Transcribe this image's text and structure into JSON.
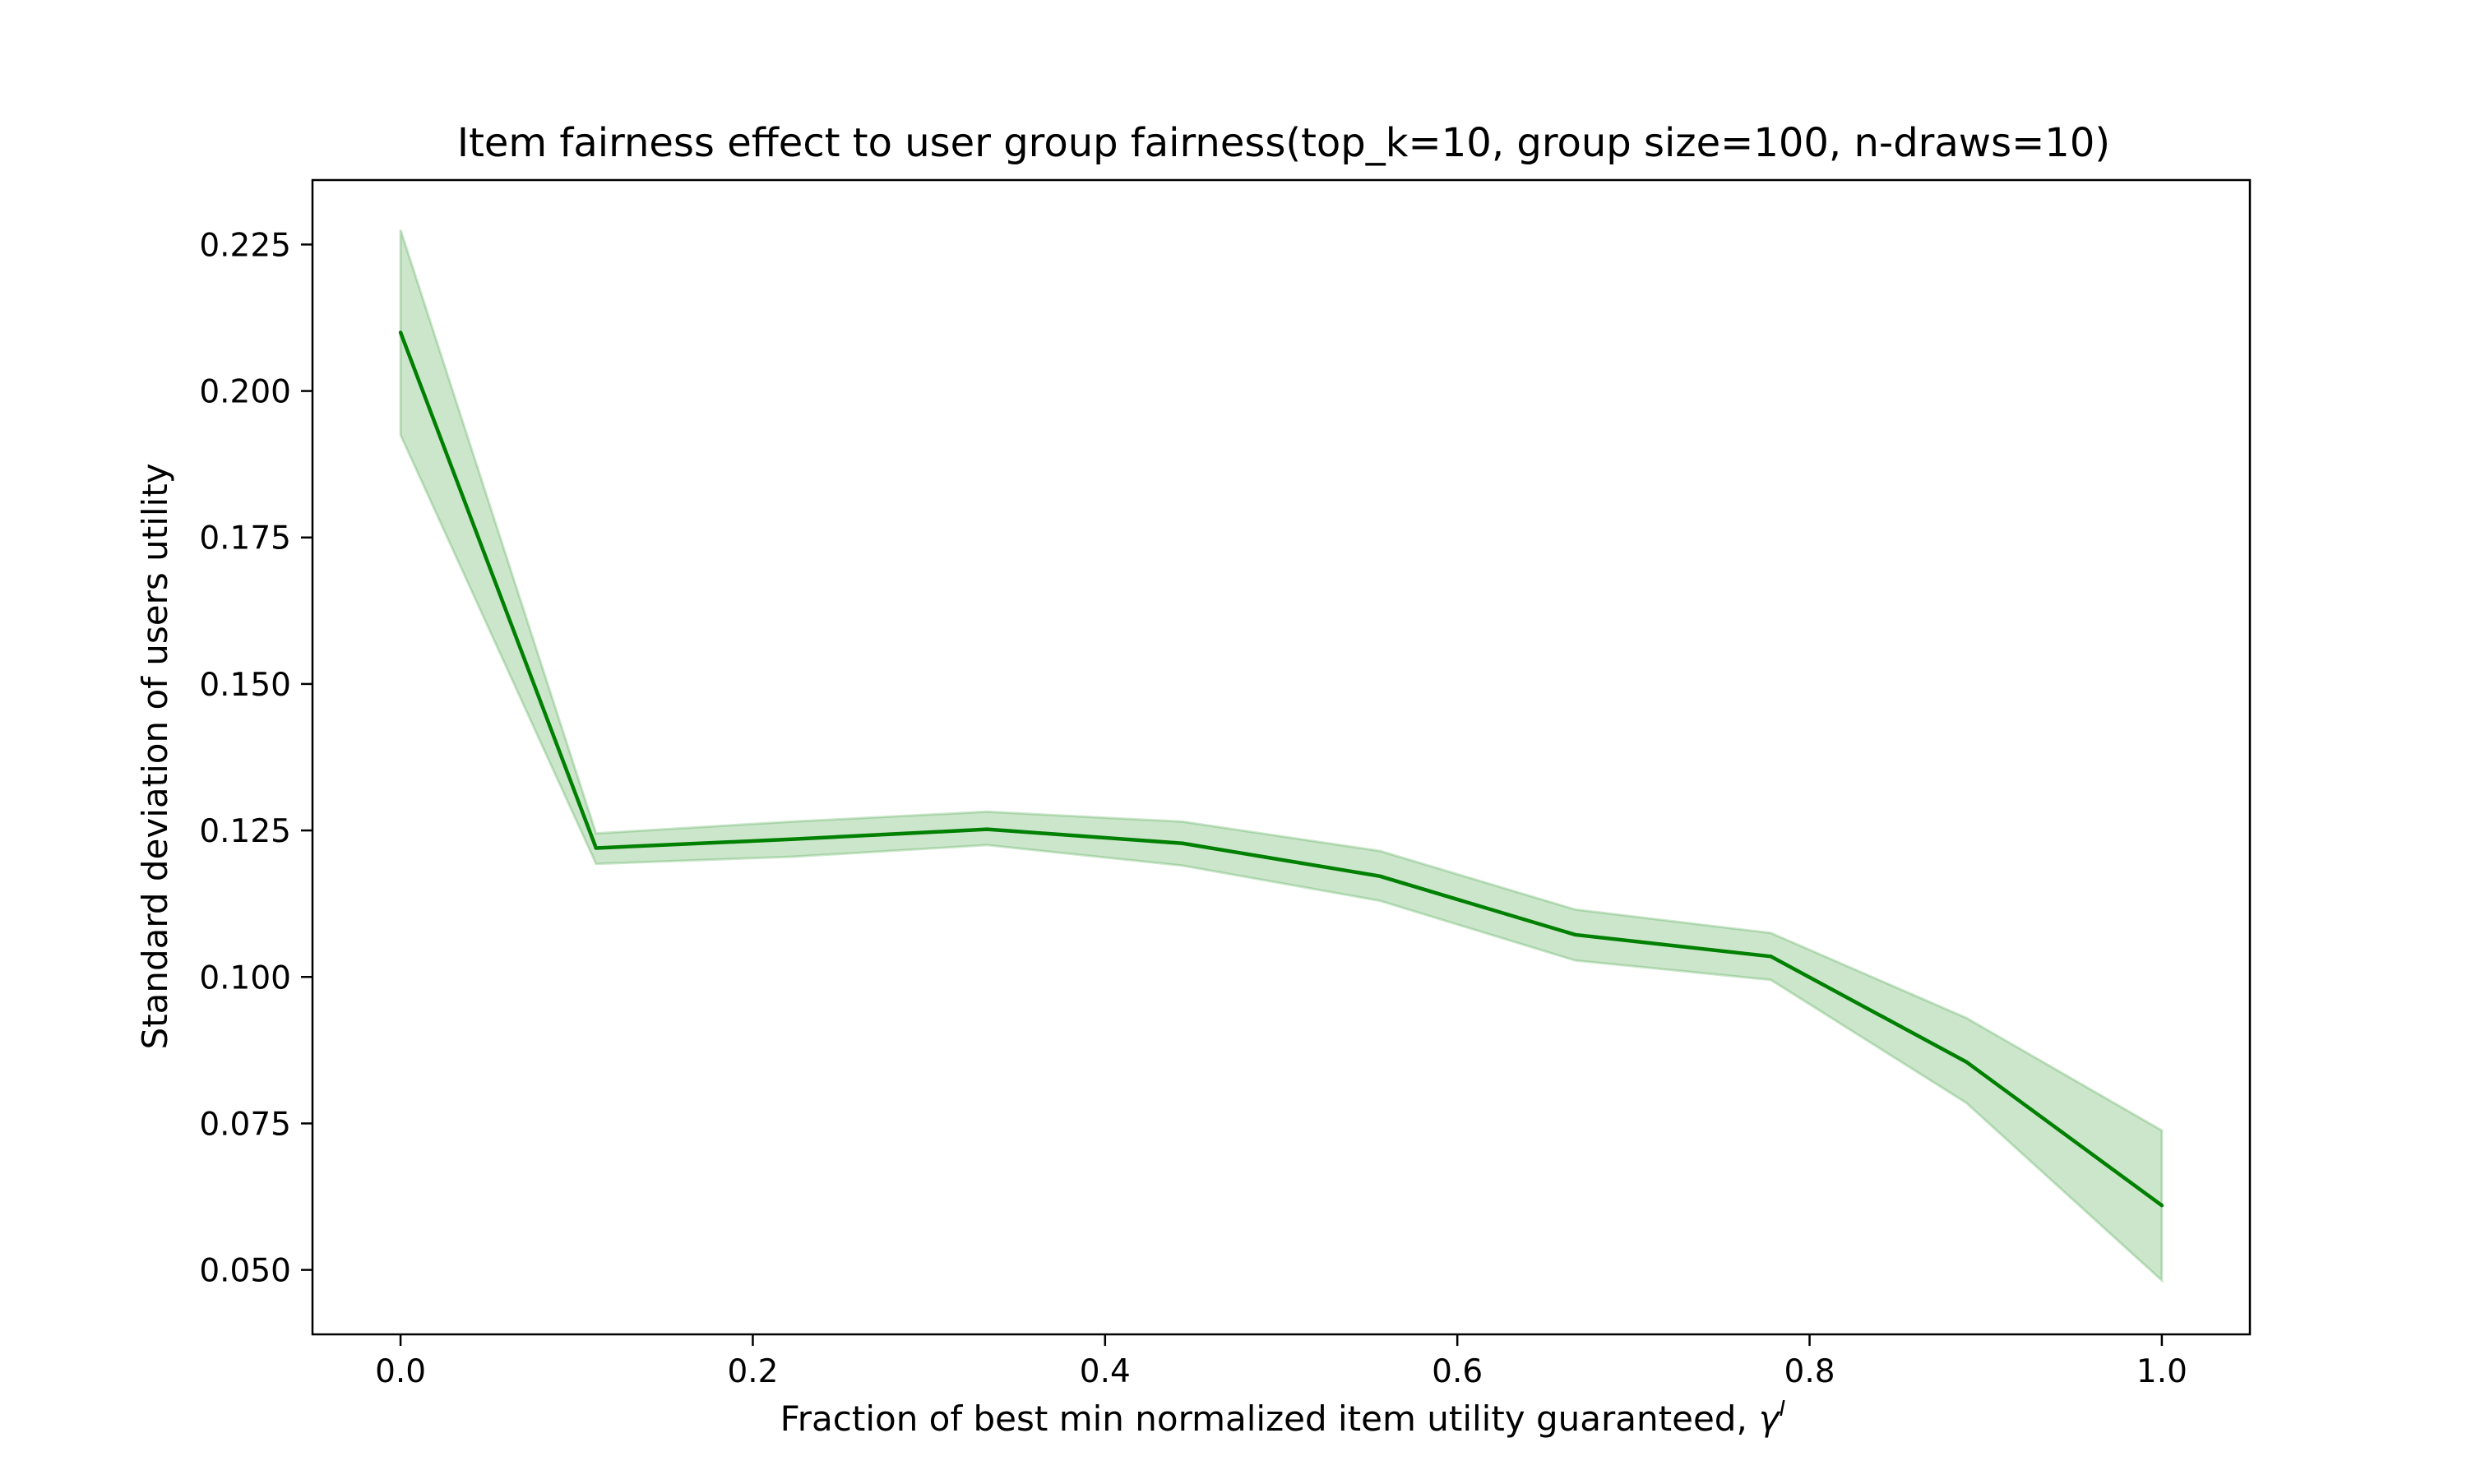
{
  "chart_data": {
    "type": "line",
    "title": "Item fairness effect to user group fairness(top_k=10, group size=100, n-draws=10)",
    "xlabel": "Fraction of best min normalized item utility guaranteed,",
    "xlabel_symbol": "γ",
    "xlabel_superscript": "I",
    "ylabel": "Standard deviation of users utility",
    "xlim": [
      -0.05,
      1.05
    ],
    "ylim": [
      0.039,
      0.236
    ],
    "xticks": [
      0.0,
      0.2,
      0.4,
      0.6,
      0.8,
      1.0
    ],
    "xtick_labels": [
      "0.0",
      "0.2",
      "0.4",
      "0.6",
      "0.8",
      "1.0"
    ],
    "yticks": [
      0.05,
      0.075,
      0.1,
      0.125,
      0.15,
      0.175,
      0.2,
      0.225
    ],
    "ytick_labels": [
      "0.050",
      "0.075",
      "0.100",
      "0.125",
      "0.150",
      "0.175",
      "0.200",
      "0.225"
    ],
    "grid": false,
    "series": [
      {
        "color": "#008000",
        "band_color": "#008000",
        "x": [
          0.0,
          0.111,
          0.222,
          0.333,
          0.444,
          0.556,
          0.667,
          0.778,
          0.889,
          1.0
        ],
        "y": [
          0.21,
          0.122,
          0.1235,
          0.1252,
          0.1228,
          0.1172,
          0.1072,
          0.1035,
          0.0855,
          0.061
        ],
        "lower": [
          0.1925,
          0.1193,
          0.1205,
          0.1225,
          0.119,
          0.113,
          0.1028,
          0.0995,
          0.0785,
          0.0482
        ],
        "upper": [
          0.2275,
          0.1245,
          0.1265,
          0.1282,
          0.1265,
          0.1215,
          0.1115,
          0.1075,
          0.093,
          0.0738
        ]
      }
    ]
  }
}
